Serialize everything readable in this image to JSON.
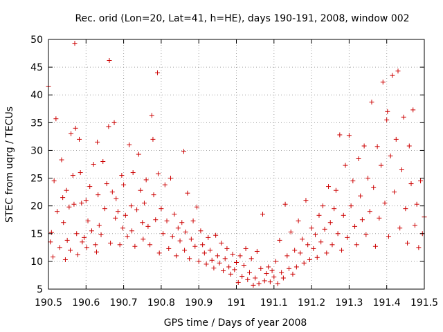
{
  "chart_data": {
    "type": "scatter",
    "title": "Rec. orid (Lon=20, Lat=41, h=HE), days 190-191, 2008, window 002",
    "xlabel": "GPS time / Days of year 2008",
    "ylabel": "STEC from uqrg / TECUs",
    "xlim": [
      190.5,
      191.5
    ],
    "ylim": [
      5,
      50
    ],
    "x_ticks": [
      190.5,
      190.6,
      190.7,
      190.8,
      190.9,
      191.0,
      191.1,
      191.2,
      191.3,
      191.4,
      191.5
    ],
    "x_tick_labels": [
      "190.5",
      "190.6",
      "190.7",
      "190.8",
      "190.9",
      "191",
      "191.1",
      "191.2",
      "191.3",
      "191.4",
      "191.5"
    ],
    "y_ticks": [
      5,
      10,
      15,
      20,
      25,
      30,
      35,
      40,
      45,
      50
    ],
    "y_tick_labels": [
      "5",
      "10",
      "15",
      "20",
      "25",
      "30",
      "35",
      "40",
      "45",
      "50"
    ],
    "grid": true,
    "marker": "+",
    "color": "#cc0000",
    "series": [
      {
        "points": [
          [
            190.5,
            41.5
          ],
          [
            190.505,
            13.5
          ],
          [
            190.508,
            15.2
          ],
          [
            190.512,
            10.8
          ],
          [
            190.515,
            24.5
          ],
          [
            190.52,
            35.7
          ],
          [
            190.523,
            19.0
          ],
          [
            190.53,
            12.5
          ],
          [
            190.535,
            28.3
          ],
          [
            190.538,
            21.5
          ],
          [
            190.54,
            17.0
          ],
          [
            190.545,
            10.3
          ],
          [
            190.548,
            22.8
          ],
          [
            190.55,
            13.8
          ],
          [
            190.555,
            19.8
          ],
          [
            190.558,
            12.0
          ],
          [
            190.56,
            33.0
          ],
          [
            190.565,
            25.5
          ],
          [
            190.568,
            20.3
          ],
          [
            190.57,
            49.3
          ],
          [
            190.572,
            34.0
          ],
          [
            190.575,
            15.0
          ],
          [
            190.578,
            11.2
          ],
          [
            190.582,
            32.0
          ],
          [
            190.585,
            26.0
          ],
          [
            190.588,
            20.5
          ],
          [
            190.59,
            13.5
          ],
          [
            190.595,
            14.3
          ],
          [
            190.6,
            21.0
          ],
          [
            190.602,
            12.5
          ],
          [
            190.605,
            17.3
          ],
          [
            190.61,
            23.5
          ],
          [
            190.615,
            15.5
          ],
          [
            190.62,
            27.5
          ],
          [
            190.625,
            13.0
          ],
          [
            190.628,
            11.7
          ],
          [
            190.63,
            31.5
          ],
          [
            190.632,
            22.0
          ],
          [
            190.635,
            16.5
          ],
          [
            190.64,
            14.8
          ],
          [
            190.645,
            28.0
          ],
          [
            190.65,
            19.5
          ],
          [
            190.655,
            24.0
          ],
          [
            190.66,
            34.3
          ],
          [
            190.662,
            46.2
          ],
          [
            190.665,
            13.3
          ],
          [
            190.67,
            22.5
          ],
          [
            190.675,
            35.0
          ],
          [
            190.678,
            17.8
          ],
          [
            190.68,
            21.3
          ],
          [
            190.685,
            19.0
          ],
          [
            190.69,
            13.0
          ],
          [
            190.695,
            25.5
          ],
          [
            190.698,
            16.0
          ],
          [
            190.7,
            23.8
          ],
          [
            190.705,
            18.3
          ],
          [
            190.71,
            14.5
          ],
          [
            190.715,
            31.0
          ],
          [
            190.72,
            20.0
          ],
          [
            190.722,
            15.5
          ],
          [
            190.725,
            26.0
          ],
          [
            190.73,
            12.7
          ],
          [
            190.735,
            19.3
          ],
          [
            190.74,
            29.3
          ],
          [
            190.745,
            22.8
          ],
          [
            190.75,
            17.0
          ],
          [
            190.752,
            14.0
          ],
          [
            190.755,
            20.5
          ],
          [
            190.76,
            24.7
          ],
          [
            190.765,
            16.3
          ],
          [
            190.77,
            13.0
          ],
          [
            190.775,
            36.3
          ],
          [
            190.778,
            32.0
          ],
          [
            190.78,
            22.0
          ],
          [
            190.785,
            17.5
          ],
          [
            190.79,
            44.0
          ],
          [
            190.792,
            25.8
          ],
          [
            190.795,
            11.5
          ],
          [
            190.8,
            19.5
          ],
          [
            190.805,
            15.0
          ],
          [
            190.81,
            23.8
          ],
          [
            190.815,
            17.3
          ],
          [
            190.82,
            12.3
          ],
          [
            190.825,
            25.0
          ],
          [
            190.83,
            14.5
          ],
          [
            190.835,
            18.5
          ],
          [
            190.84,
            11.0
          ],
          [
            190.845,
            16.0
          ],
          [
            190.85,
            13.7
          ],
          [
            190.855,
            17.0
          ],
          [
            190.86,
            29.8
          ],
          [
            190.862,
            12.0
          ],
          [
            190.865,
            15.3
          ],
          [
            190.87,
            22.3
          ],
          [
            190.875,
            10.5
          ],
          [
            190.88,
            14.0
          ],
          [
            190.885,
            17.3
          ],
          [
            190.89,
            12.7
          ],
          [
            190.895,
            19.8
          ],
          [
            190.9,
            10.0
          ],
          [
            190.905,
            15.5
          ],
          [
            190.91,
            13.0
          ],
          [
            190.915,
            11.5
          ],
          [
            190.92,
            9.5
          ],
          [
            190.925,
            14.3
          ],
          [
            190.93,
            12.0
          ],
          [
            190.935,
            10.2
          ],
          [
            190.94,
            8.8
          ],
          [
            190.945,
            14.7
          ],
          [
            190.95,
            11.0
          ],
          [
            190.955,
            9.7
          ],
          [
            190.96,
            13.3
          ],
          [
            190.965,
            8.3
          ],
          [
            190.97,
            10.5
          ],
          [
            190.975,
            12.3
          ],
          [
            190.98,
            9.0
          ],
          [
            190.985,
            7.7
          ],
          [
            190.99,
            11.3
          ],
          [
            190.995,
            8.5
          ],
          [
            191.0,
            9.8
          ],
          [
            191.005,
            6.2
          ],
          [
            191.01,
            11.0
          ],
          [
            191.015,
            7.3
          ],
          [
            191.02,
            9.3
          ],
          [
            191.025,
            12.3
          ],
          [
            191.03,
            6.7
          ],
          [
            191.035,
            8.0
          ],
          [
            191.04,
            10.5
          ],
          [
            191.045,
            5.7
          ],
          [
            191.05,
            7.0
          ],
          [
            191.055,
            11.8
          ],
          [
            191.06,
            6.0
          ],
          [
            191.065,
            8.7
          ],
          [
            191.07,
            18.5
          ],
          [
            191.075,
            6.5
          ],
          [
            191.08,
            7.8
          ],
          [
            191.085,
            9.0
          ],
          [
            191.09,
            6.3
          ],
          [
            191.095,
            8.3
          ],
          [
            191.1,
            7.2
          ],
          [
            191.105,
            10.0
          ],
          [
            191.11,
            6.0
          ],
          [
            191.115,
            13.8
          ],
          [
            191.12,
            8.0
          ],
          [
            191.125,
            7.0
          ],
          [
            191.13,
            20.3
          ],
          [
            191.135,
            11.0
          ],
          [
            191.14,
            8.7
          ],
          [
            191.145,
            15.3
          ],
          [
            191.15,
            7.7
          ],
          [
            191.155,
            12.0
          ],
          [
            191.16,
            9.0
          ],
          [
            191.165,
            17.3
          ],
          [
            191.17,
            11.5
          ],
          [
            191.175,
            14.0
          ],
          [
            191.18,
            9.7
          ],
          [
            191.185,
            21.0
          ],
          [
            191.19,
            13.0
          ],
          [
            191.195,
            10.3
          ],
          [
            191.2,
            16.0
          ],
          [
            191.205,
            12.3
          ],
          [
            191.21,
            14.8
          ],
          [
            191.215,
            10.7
          ],
          [
            191.22,
            18.3
          ],
          [
            191.225,
            13.5
          ],
          [
            191.23,
            20.0
          ],
          [
            191.235,
            15.8
          ],
          [
            191.24,
            11.5
          ],
          [
            191.245,
            23.5
          ],
          [
            191.25,
            17.0
          ],
          [
            191.255,
            13.0
          ],
          [
            191.26,
            19.5
          ],
          [
            191.265,
            22.8
          ],
          [
            191.27,
            15.0
          ],
          [
            191.275,
            32.8
          ],
          [
            191.28,
            12.0
          ],
          [
            191.285,
            18.3
          ],
          [
            191.29,
            27.3
          ],
          [
            191.295,
            14.3
          ],
          [
            191.3,
            32.7
          ],
          [
            191.305,
            20.0
          ],
          [
            191.31,
            24.5
          ],
          [
            191.315,
            16.3
          ],
          [
            191.32,
            13.0
          ],
          [
            191.325,
            28.5
          ],
          [
            191.33,
            21.8
          ],
          [
            191.335,
            17.5
          ],
          [
            191.34,
            30.8
          ],
          [
            191.345,
            14.8
          ],
          [
            191.35,
            25.0
          ],
          [
            191.355,
            19.0
          ],
          [
            191.36,
            38.7
          ],
          [
            191.365,
            23.3
          ],
          [
            191.37,
            12.7
          ],
          [
            191.375,
            30.7
          ],
          [
            191.38,
            17.8
          ],
          [
            191.385,
            27.3
          ],
          [
            191.39,
            42.3
          ],
          [
            191.395,
            20.5
          ],
          [
            191.4,
            35.5
          ],
          [
            191.402,
            37.0
          ],
          [
            191.405,
            14.5
          ],
          [
            191.41,
            29.0
          ],
          [
            191.415,
            43.5
          ],
          [
            191.42,
            22.5
          ],
          [
            191.425,
            32.0
          ],
          [
            191.43,
            44.3
          ],
          [
            191.435,
            16.0
          ],
          [
            191.44,
            26.5
          ],
          [
            191.445,
            36.0
          ],
          [
            191.45,
            19.5
          ],
          [
            191.455,
            13.3
          ],
          [
            191.46,
            30.8
          ],
          [
            191.465,
            24.0
          ],
          [
            191.47,
            37.3
          ],
          [
            191.475,
            16.5
          ],
          [
            191.48,
            20.3
          ],
          [
            191.485,
            12.5
          ],
          [
            191.49,
            24.5
          ],
          [
            191.495,
            15.0
          ],
          [
            191.5,
            18.0
          ]
        ]
      }
    ]
  }
}
